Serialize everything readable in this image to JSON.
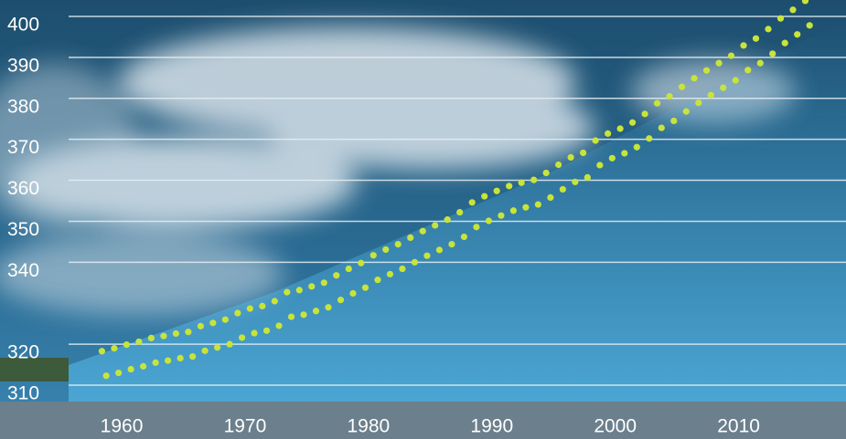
{
  "chart_data": {
    "type": "scatter",
    "x": [
      1958.4,
      1958.75,
      1959.4,
      1959.75,
      1960.4,
      1960.75,
      1961.4,
      1961.75,
      1962.4,
      1962.75,
      1963.4,
      1963.75,
      1964.4,
      1964.75,
      1965.4,
      1965.75,
      1966.4,
      1966.75,
      1967.4,
      1967.75,
      1968.4,
      1968.75,
      1969.4,
      1969.75,
      1970.4,
      1970.75,
      1971.4,
      1971.75,
      1972.4,
      1972.75,
      1973.4,
      1973.75,
      1974.4,
      1974.75,
      1975.4,
      1975.75,
      1976.4,
      1976.75,
      1977.4,
      1977.75,
      1978.4,
      1978.75,
      1979.4,
      1979.75,
      1980.4,
      1980.75,
      1981.4,
      1981.75,
      1982.4,
      1982.75,
      1983.4,
      1983.75,
      1984.4,
      1984.75,
      1985.4,
      1985.75,
      1986.4,
      1986.75,
      1987.4,
      1987.75,
      1988.4,
      1988.75,
      1989.4,
      1989.75,
      1990.4,
      1990.75,
      1991.4,
      1991.75,
      1992.4,
      1992.75,
      1993.4,
      1993.75,
      1994.4,
      1994.75,
      1995.4,
      1995.75,
      1996.4,
      1996.75,
      1997.4,
      1997.75,
      1998.4,
      1998.75,
      1999.4,
      1999.75,
      2000.4,
      2000.75,
      2001.4,
      2001.75,
      2002.4,
      2002.75,
      2003.4,
      2003.75,
      2004.4,
      2004.75,
      2005.4,
      2005.75,
      2006.4,
      2006.75,
      2007.4,
      2007.75,
      2008.4,
      2008.75,
      2009.4,
      2009.75,
      2010.4,
      2010.75,
      2011.4,
      2011.75,
      2012.4,
      2012.75,
      2013.4,
      2013.75,
      2014.4,
      2014.75,
      2015.4,
      2015.75
    ],
    "values": [
      318.3,
      312.3,
      319.0,
      313.0,
      319.9,
      313.9,
      320.6,
      314.6,
      321.5,
      315.5,
      322.0,
      316.0,
      322.6,
      316.6,
      323.0,
      317.0,
      324.4,
      318.4,
      325.2,
      319.2,
      326.0,
      320.0,
      327.6,
      321.6,
      328.7,
      322.7,
      329.3,
      323.3,
      330.5,
      324.5,
      332.7,
      326.7,
      333.2,
      327.2,
      334.1,
      328.1,
      335.0,
      329.0,
      336.8,
      330.8,
      338.4,
      332.4,
      339.8,
      333.8,
      341.7,
      335.7,
      343.1,
      337.1,
      344.4,
      338.4,
      346.0,
      340.0,
      347.6,
      341.6,
      349.0,
      343.0,
      350.4,
      344.4,
      352.2,
      346.2,
      354.6,
      348.6,
      356.1,
      350.1,
      357.4,
      351.4,
      358.6,
      352.6,
      359.4,
      353.4,
      360.1,
      354.1,
      361.8,
      355.8,
      363.8,
      357.8,
      365.6,
      359.6,
      366.7,
      360.7,
      369.7,
      363.7,
      371.4,
      365.4,
      372.6,
      366.6,
      374.1,
      368.1,
      376.2,
      370.2,
      378.8,
      372.8,
      380.5,
      374.5,
      382.8,
      376.8,
      384.9,
      378.9,
      386.8,
      380.8,
      388.6,
      382.6,
      390.4,
      384.4,
      392.9,
      386.9,
      394.6,
      388.6,
      396.9,
      390.9,
      399.5,
      393.5,
      401.6,
      395.6,
      403.8,
      397.8
    ],
    "color": "#c8e43a",
    "xlim": [
      1955.7,
      2018.7
    ],
    "xticks": [
      1960,
      1970,
      1980,
      1990,
      2000,
      2010
    ],
    "ylim": [
      306,
      404
    ],
    "yticks": [
      310,
      320,
      340,
      350,
      360,
      370,
      380,
      390,
      400
    ],
    "grid": true
  }
}
